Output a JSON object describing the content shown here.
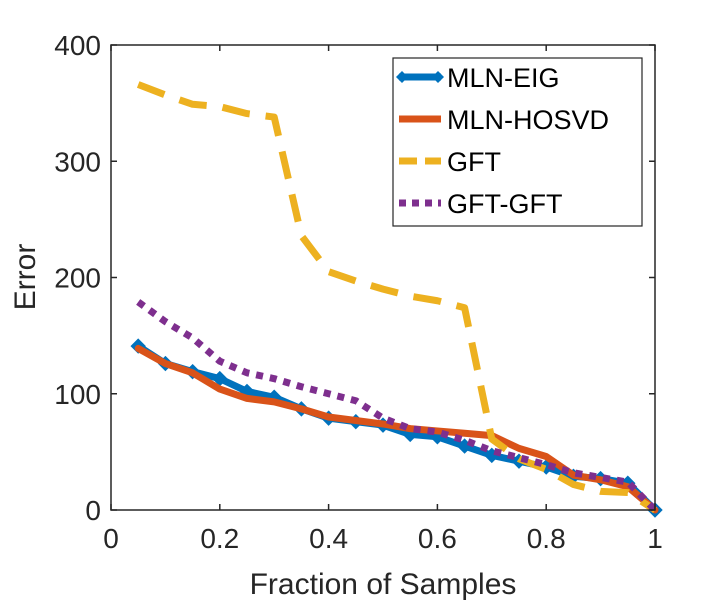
{
  "chart_data": {
    "type": "line",
    "xlabel": "Fraction of Samples",
    "ylabel": "Error",
    "xlim": [
      0,
      1
    ],
    "ylim": [
      0,
      400
    ],
    "xticks": [
      0,
      0.2,
      0.4,
      0.6,
      0.8,
      1
    ],
    "xtick_labels": [
      "0",
      "0.2",
      "0.4",
      "0.6",
      "0.8",
      "1"
    ],
    "yticks": [
      0,
      100,
      200,
      300,
      400
    ],
    "ytick_labels": [
      "0",
      "100",
      "200",
      "300",
      "400"
    ],
    "grid": false,
    "legend_position": "top-right",
    "series": [
      {
        "name": "MLN-EIG",
        "color": "#0072BD",
        "style": "solid-diamond",
        "x": [
          0.05,
          0.1,
          0.15,
          0.2,
          0.25,
          0.3,
          0.35,
          0.4,
          0.45,
          0.5,
          0.55,
          0.6,
          0.65,
          0.7,
          0.75,
          0.8,
          0.85,
          0.9,
          0.95,
          1.0
        ],
        "values": [
          141,
          126,
          119,
          113,
          102,
          97,
          87,
          79,
          76,
          73,
          65,
          63,
          55,
          47,
          42,
          37,
          29,
          27,
          23,
          0
        ]
      },
      {
        "name": "MLN-HOSVD",
        "color": "#D95319",
        "style": "solid",
        "x": [
          0.05,
          0.1,
          0.15,
          0.2,
          0.25,
          0.3,
          0.35,
          0.4,
          0.45,
          0.5,
          0.55,
          0.6,
          0.65,
          0.7,
          0.75,
          0.8,
          0.85,
          0.9,
          0.95,
          1.0
        ],
        "values": [
          139,
          126,
          118,
          104,
          96,
          93,
          87,
          80,
          77,
          74,
          70,
          68,
          66,
          64,
          53,
          46,
          30,
          26,
          20,
          0
        ]
      },
      {
        "name": "GFT",
        "color": "#EDB120",
        "style": "dashed",
        "x": [
          0.05,
          0.1,
          0.15,
          0.2,
          0.25,
          0.3,
          0.35,
          0.4,
          0.45,
          0.5,
          0.55,
          0.6,
          0.65,
          0.7,
          0.75,
          0.8,
          0.85,
          0.9,
          0.95,
          1.0
        ],
        "values": [
          366,
          357,
          349,
          347,
          341,
          338,
          236,
          205,
          197,
          190,
          184,
          180,
          174,
          61,
          44,
          35,
          22,
          16,
          15,
          0
        ]
      },
      {
        "name": "GFT-GFT",
        "color": "#7E2F8E",
        "style": "dotted",
        "x": [
          0.05,
          0.1,
          0.15,
          0.2,
          0.25,
          0.3,
          0.35,
          0.4,
          0.45,
          0.5,
          0.55,
          0.6,
          0.65,
          0.7,
          0.75,
          0.8,
          0.85,
          0.9,
          0.95,
          1.0
        ],
        "values": [
          179,
          162,
          148,
          128,
          118,
          113,
          106,
          100,
          94,
          79,
          70,
          67,
          60,
          51,
          45,
          39,
          32,
          28,
          24,
          0
        ]
      }
    ]
  }
}
